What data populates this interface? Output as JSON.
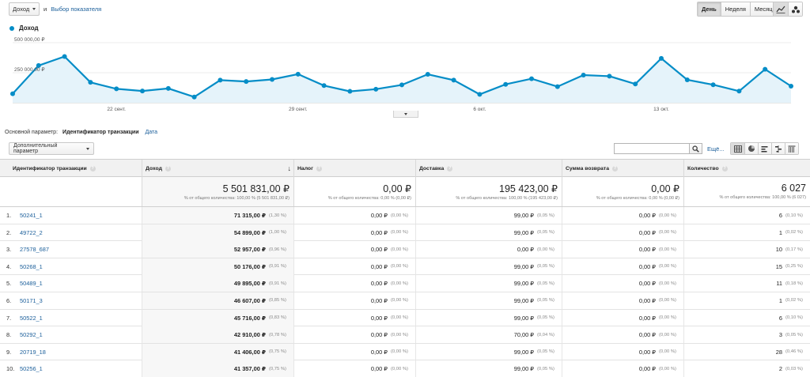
{
  "controls": {
    "metric_select": "Доход",
    "and": "и",
    "choose_metric": "Выбор показателя",
    "periods": [
      {
        "label": "День",
        "active": true
      },
      {
        "label": "Неделя",
        "active": false
      },
      {
        "label": "Месяц",
        "active": false
      }
    ],
    "chart_type_icons": [
      "line-chart-icon",
      "motion-chart-icon"
    ]
  },
  "chart_data": {
    "type": "area",
    "series": [
      {
        "name": "Доход",
        "color": "#058dc7",
        "values": [
          75000,
          310000,
          385000,
          170000,
          116000,
          98000,
          119000,
          48000,
          188000,
          177000,
          194000,
          238000,
          143000,
          95000,
          113000,
          149000,
          237000,
          188000,
          70000,
          153000,
          200000,
          134000,
          230000,
          221000,
          156000,
          369000,
          191000,
          150000,
          97000,
          279000,
          138000
        ]
      }
    ],
    "ylim": [
      0,
      500000
    ],
    "yticks": [
      {
        "value": 500000,
        "label": "500 000,00 ₽"
      },
      {
        "value": 250000,
        "label": "250 000,00 ₽"
      }
    ],
    "xticks": [
      {
        "index": 4,
        "label": "22 сент."
      },
      {
        "index": 11,
        "label": "29 сент."
      },
      {
        "index": 18,
        "label": "6 окт."
      },
      {
        "index": 25,
        "label": "13 окт."
      }
    ],
    "grid": true,
    "legend": "top-left"
  },
  "dimension": {
    "label": "Основной параметр:",
    "active": "Идентификатор транзакции",
    "alt": "Дата"
  },
  "secondary_param": "Дополнительный параметр",
  "search": {
    "value": "",
    "more": "Ещё..."
  },
  "view_icons": [
    "table-view-icon",
    "pie-view-icon",
    "performance-view-icon",
    "comparison-view-icon",
    "pivot-view-icon"
  ],
  "table": {
    "columns": [
      "Идентификатор транзакции",
      "Доход",
      "Налог",
      "Доставка",
      "Сумма возврата",
      "Количество"
    ],
    "totals": [
      {
        "big": "5 501 831,00 ₽",
        "small": "% от общего количества: 100,00 % (5 501 831,00 ₽)"
      },
      {
        "big": "0,00 ₽",
        "small": "% от общего количества: 0,00 % (0,00 ₽)"
      },
      {
        "big": "195 423,00 ₽",
        "small": "% от общего количества: 100,00 % (195 423,00 ₽)"
      },
      {
        "big": "0,00 ₽",
        "small": "% от общего количества: 0,00 % (0,00 ₽)"
      },
      {
        "big": "6 027",
        "small": "% от общего количества: 100,00 % (6 027)"
      }
    ],
    "rows": [
      {
        "idx": "1.",
        "id": "50241_1",
        "cells": [
          [
            "71 315,00 ₽",
            "(1,30 %)"
          ],
          [
            "0,00 ₽",
            "(0,00 %)"
          ],
          [
            "99,00 ₽",
            "(0,05 %)"
          ],
          [
            "0,00 ₽",
            "(0,00 %)"
          ],
          [
            "6",
            "(0,10 %)"
          ]
        ]
      },
      {
        "idx": "2.",
        "id": "49722_2",
        "cells": [
          [
            "54 899,00 ₽",
            "(1,00 %)"
          ],
          [
            "0,00 ₽",
            "(0,00 %)"
          ],
          [
            "99,00 ₽",
            "(0,05 %)"
          ],
          [
            "0,00 ₽",
            "(0,00 %)"
          ],
          [
            "1",
            "(0,02 %)"
          ]
        ]
      },
      {
        "idx": "3.",
        "id": "27578_687",
        "cells": [
          [
            "52 957,00 ₽",
            "(0,96 %)"
          ],
          [
            "0,00 ₽",
            "(0,00 %)"
          ],
          [
            "0,00 ₽",
            "(0,00 %)"
          ],
          [
            "0,00 ₽",
            "(0,00 %)"
          ],
          [
            "10",
            "(0,17 %)"
          ]
        ]
      },
      {
        "idx": "4.",
        "id": "50268_1",
        "cells": [
          [
            "50 176,00 ₽",
            "(0,91 %)"
          ],
          [
            "0,00 ₽",
            "(0,00 %)"
          ],
          [
            "99,00 ₽",
            "(0,05 %)"
          ],
          [
            "0,00 ₽",
            "(0,00 %)"
          ],
          [
            "15",
            "(0,25 %)"
          ]
        ]
      },
      {
        "idx": "5.",
        "id": "50489_1",
        "cells": [
          [
            "49 895,00 ₽",
            "(0,91 %)"
          ],
          [
            "0,00 ₽",
            "(0,00 %)"
          ],
          [
            "99,00 ₽",
            "(0,05 %)"
          ],
          [
            "0,00 ₽",
            "(0,00 %)"
          ],
          [
            "11",
            "(0,18 %)"
          ]
        ]
      },
      {
        "idx": "6.",
        "id": "50171_3",
        "cells": [
          [
            "46 607,00 ₽",
            "(0,85 %)"
          ],
          [
            "0,00 ₽",
            "(0,00 %)"
          ],
          [
            "99,00 ₽",
            "(0,05 %)"
          ],
          [
            "0,00 ₽",
            "(0,00 %)"
          ],
          [
            "1",
            "(0,02 %)"
          ]
        ]
      },
      {
        "idx": "7.",
        "id": "50522_1",
        "cells": [
          [
            "45 716,00 ₽",
            "(0,83 %)"
          ],
          [
            "0,00 ₽",
            "(0,00 %)"
          ],
          [
            "99,00 ₽",
            "(0,05 %)"
          ],
          [
            "0,00 ₽",
            "(0,00 %)"
          ],
          [
            "6",
            "(0,10 %)"
          ]
        ]
      },
      {
        "idx": "8.",
        "id": "50292_1",
        "cells": [
          [
            "42 910,00 ₽",
            "(0,78 %)"
          ],
          [
            "0,00 ₽",
            "(0,00 %)"
          ],
          [
            "70,00 ₽",
            "(0,04 %)"
          ],
          [
            "0,00 ₽",
            "(0,00 %)"
          ],
          [
            "3",
            "(0,05 %)"
          ]
        ]
      },
      {
        "idx": "9.",
        "id": "20719_18",
        "cells": [
          [
            "41 406,00 ₽",
            "(0,75 %)"
          ],
          [
            "0,00 ₽",
            "(0,00 %)"
          ],
          [
            "99,00 ₽",
            "(0,05 %)"
          ],
          [
            "0,00 ₽",
            "(0,00 %)"
          ],
          [
            "28",
            "(0,46 %)"
          ]
        ]
      },
      {
        "idx": "10.",
        "id": "50256_1",
        "cells": [
          [
            "41 357,00 ₽",
            "(0,75 %)"
          ],
          [
            "0,00 ₽",
            "(0,00 %)"
          ],
          [
            "99,00 ₽",
            "(0,05 %)"
          ],
          [
            "0,00 ₽",
            "(0,00 %)"
          ],
          [
            "2",
            "(0,03 %)"
          ]
        ]
      }
    ]
  }
}
